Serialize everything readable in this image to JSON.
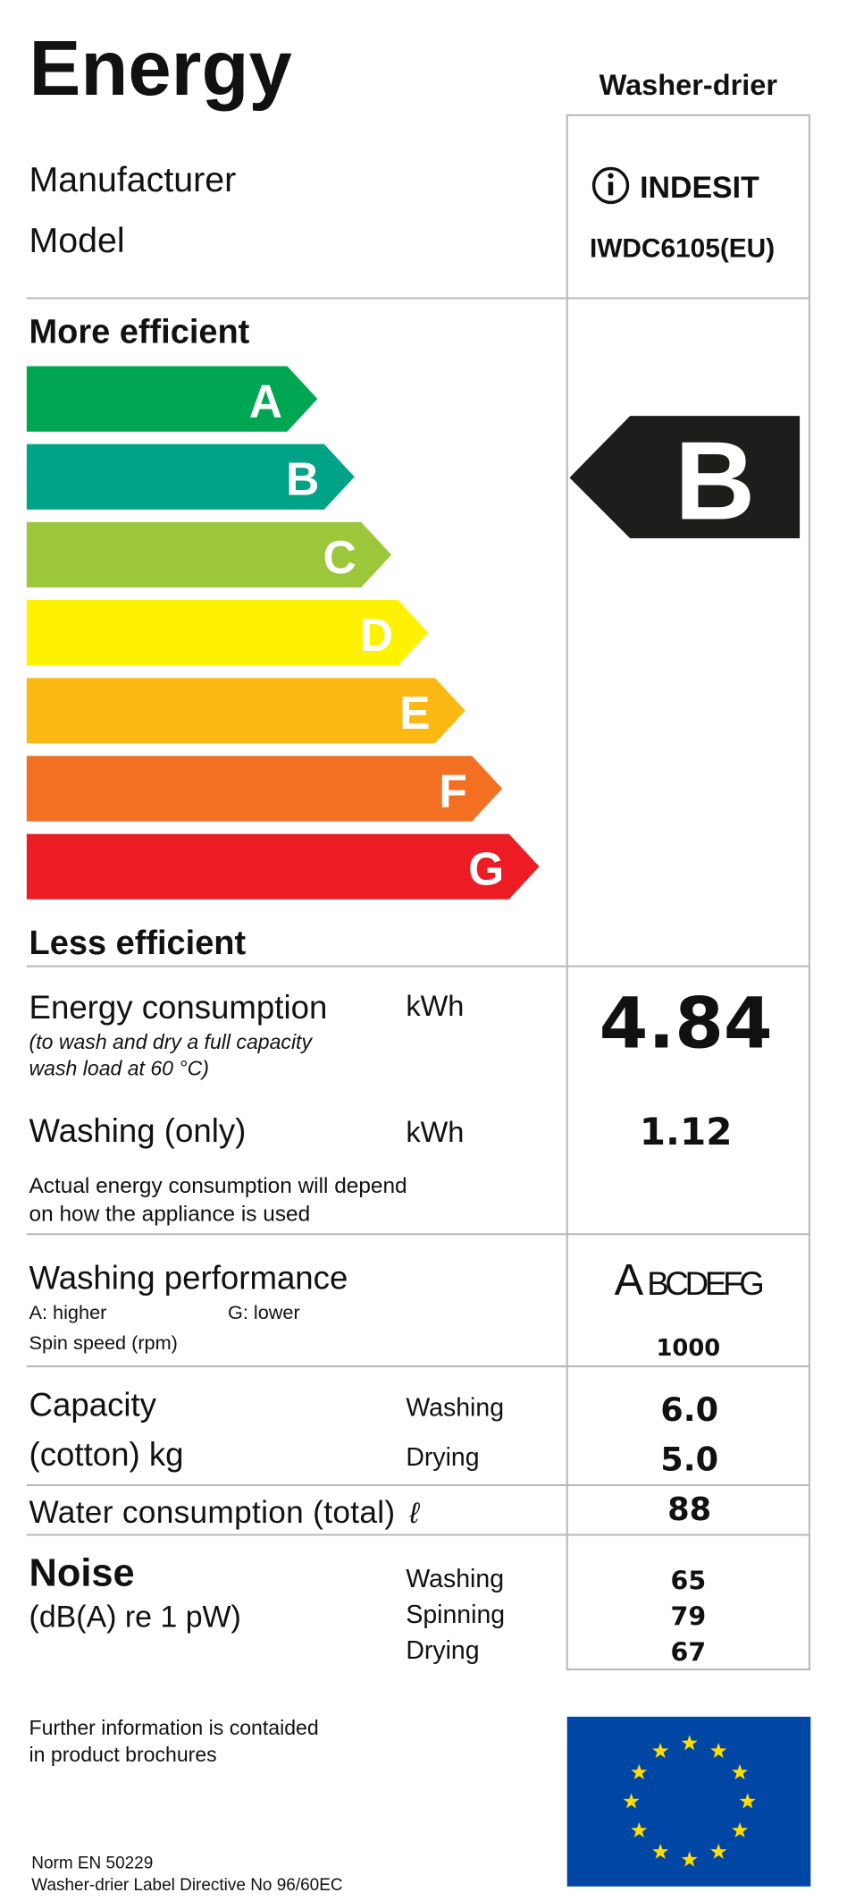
{
  "header": {
    "title": "Energy",
    "appliance": "Washer-drier"
  },
  "identity": {
    "manufacturer_label": "Manufacturer",
    "model_label": "Model",
    "manufacturer": "INDESIT",
    "model": "IWDC6105(EU)"
  },
  "scale": {
    "top_label": "More efficient",
    "bottom_label": "Less efficient",
    "classes": [
      {
        "letter": "A",
        "color": "#00a651"
      },
      {
        "letter": "B",
        "color": "#00a385"
      },
      {
        "letter": "C",
        "color": "#9cc73a"
      },
      {
        "letter": "D",
        "color": "#fff200"
      },
      {
        "letter": "E",
        "color": "#fdb913"
      },
      {
        "letter": "F",
        "color": "#f36f21"
      },
      {
        "letter": "G",
        "color": "#ed1c24"
      }
    ],
    "rating": "B"
  },
  "energy": {
    "label": "Energy consumption",
    "unit": "kWh",
    "note_1": "(to wash and dry a full capacity",
    "note_2": "wash load at 60 °C)",
    "value": "4.84",
    "washing_label": "Washing (only)",
    "washing_unit": "kWh",
    "washing_value": "1.12",
    "actual_1": "Actual energy consumption will depend",
    "actual_2": "on how the appliance is used"
  },
  "performance": {
    "label": "Washing performance",
    "higher": "A: higher",
    "lower": "G: lower",
    "rating": "A",
    "rest": "BCDEFG",
    "spin_label": "Spin speed (rpm)",
    "spin_value": "1000"
  },
  "capacity": {
    "label_1": "Capacity",
    "label_2": "(cotton) kg",
    "washing_label": "Washing",
    "drying_label": "Drying",
    "washing_value": "6.0",
    "drying_value": "5.0"
  },
  "water": {
    "label": "Water consumption (total)",
    "unit": "ℓ",
    "value": "88"
  },
  "noise": {
    "label": "Noise",
    "unit": "(dB(A) re 1 pW)",
    "rows": [
      {
        "label": "Washing",
        "value": "65"
      },
      {
        "label": "Spinning",
        "value": "79"
      },
      {
        "label": "Drying",
        "value": "67"
      }
    ]
  },
  "footer": {
    "info_1": "Further information is contaided",
    "info_2": "in product brochures",
    "norm": "Norm EN 50229",
    "directive": "Washer-drier Label Directive No 96/60EC"
  }
}
